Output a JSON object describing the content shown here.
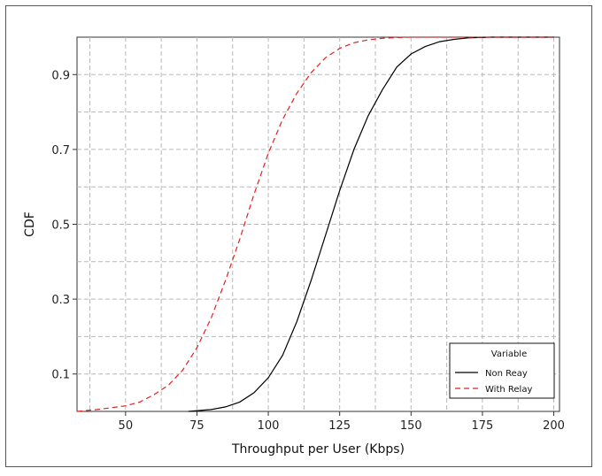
{
  "chart_data": {
    "type": "line",
    "title": "",
    "xlabel": "Throughput per User (Kbps)",
    "ylabel": "CDF",
    "xlim": [
      33,
      202
    ],
    "ylim": [
      0,
      1.0
    ],
    "xticks": [
      50,
      75,
      100,
      125,
      150,
      175,
      200
    ],
    "yticks": [
      0.1,
      0.3,
      0.5,
      0.7,
      0.9
    ],
    "grid": true,
    "legend": {
      "title": "Variable",
      "placement": "bottom-right",
      "entries": [
        "Non Reay",
        "With Relay"
      ]
    },
    "series": [
      {
        "name": "Non Reay",
        "color": "#000000",
        "style": "solid",
        "x": [
          72,
          80,
          85,
          90,
          95,
          100,
          105,
          110,
          115,
          120,
          125,
          130,
          135,
          140,
          145,
          150,
          155,
          160,
          165,
          170,
          178,
          200
        ],
        "y": [
          0.0,
          0.005,
          0.012,
          0.025,
          0.05,
          0.09,
          0.15,
          0.24,
          0.35,
          0.47,
          0.59,
          0.7,
          0.79,
          0.86,
          0.92,
          0.955,
          0.975,
          0.988,
          0.994,
          0.998,
          1.0,
          1.0
        ]
      },
      {
        "name": "With Relay",
        "color": "#e02020",
        "style": "dashed",
        "x": [
          33,
          40,
          45,
          50,
          55,
          60,
          65,
          70,
          75,
          80,
          85,
          90,
          95,
          100,
          105,
          110,
          115,
          120,
          125,
          130,
          135,
          140,
          145,
          150,
          200
        ],
        "y": [
          0.0,
          0.005,
          0.01,
          0.015,
          0.025,
          0.045,
          0.07,
          0.11,
          0.17,
          0.25,
          0.35,
          0.46,
          0.58,
          0.69,
          0.78,
          0.85,
          0.905,
          0.945,
          0.97,
          0.985,
          0.993,
          0.997,
          0.999,
          1.0,
          1.0
        ]
      }
    ]
  }
}
